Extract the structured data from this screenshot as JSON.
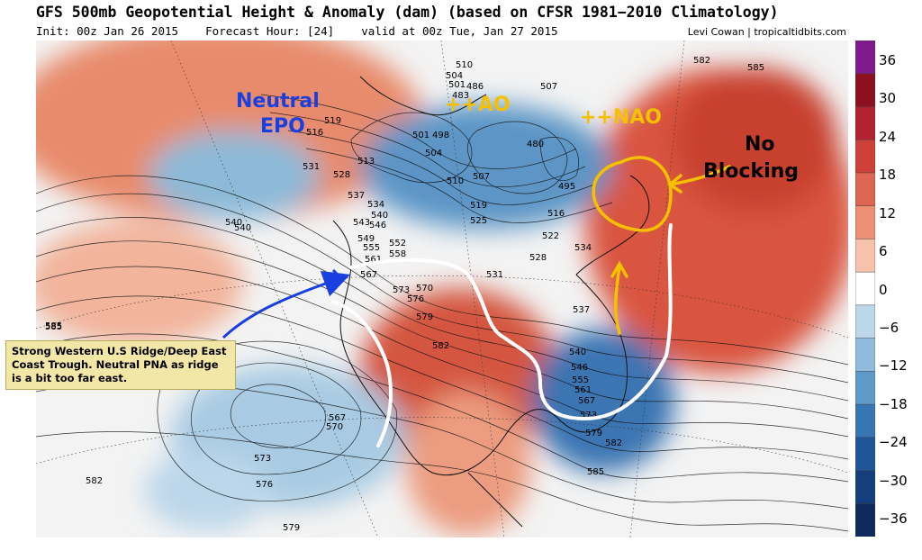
{
  "header": {
    "title": "GFS 500mb Geopotential Height & Anomaly (dam) (based on CFSR 1981−2010 Climatology)",
    "init": "Init: 00z Jan 26 2015",
    "forecast_hour": "Forecast Hour: [24]",
    "valid": "valid at 00z Tue, Jan 27 2015",
    "credit": "Levi Cowan | tropicaltidbits.com"
  },
  "colorbar": {
    "labels": [
      "36",
      "30",
      "24",
      "18",
      "12",
      "6",
      "0",
      "−6",
      "−12",
      "−18",
      "−24",
      "−30",
      "−36"
    ],
    "colors": [
      "#7f1b8c",
      "#8c1020",
      "#b3232f",
      "#cc4038",
      "#dd6552",
      "#ec9075",
      "#f6c2ac",
      "#ffffff",
      "#bcd7ea",
      "#8fbcdc",
      "#5e9bcb",
      "#3776b3",
      "#1f5698",
      "#143e7c",
      "#0e2a5c"
    ]
  },
  "annotations": {
    "epo": [
      "Neutral",
      "EPO"
    ],
    "ao": "++AO",
    "nao": "++NAO",
    "blocking": [
      "No",
      "Blocking"
    ],
    "note": "Strong Western U.S Ridge/Deep East Coast Trough.  Neutral PNA as ridge is a bit too far east."
  },
  "contour_labels": [
    "510",
    "504",
    "501",
    "486",
    "483",
    "507",
    "519",
    "516",
    "501",
    "498",
    "504",
    "480",
    "531",
    "528",
    "513",
    "510",
    "507",
    "495",
    "537",
    "534",
    "540",
    "546",
    "543",
    "549",
    "555",
    "552",
    "558",
    "561",
    "519",
    "525",
    "516",
    "522",
    "528",
    "531",
    "534",
    "540",
    "567",
    "573",
    "570",
    "576",
    "579",
    "582",
    "537",
    "540",
    "546",
    "555",
    "561",
    "567",
    "573",
    "579",
    "582",
    "585",
    "567",
    "570",
    "573",
    "576",
    "579",
    "582",
    "585",
    "582",
    "585",
    "540",
    "585"
  ],
  "colors": {
    "epo": "#1a3fe0",
    "ao_nao": "#f5c000",
    "arrow_blue": "#1a3fe0",
    "arrow_yellow": "#f5c000",
    "arrow_white": "#ffffff"
  }
}
